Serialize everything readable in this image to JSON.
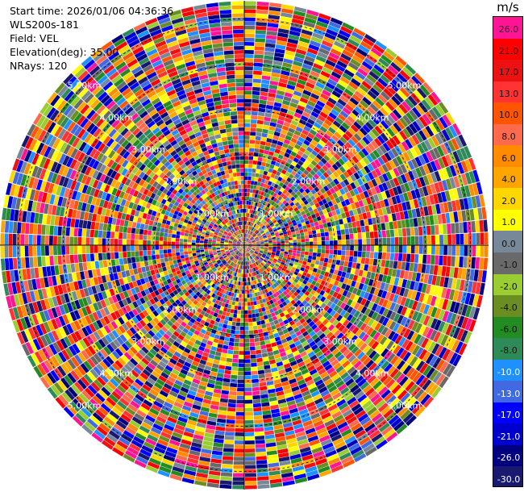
{
  "chart_data": {
    "type": "ppi",
    "field": "VEL",
    "unit": "m/s",
    "n_rays": 120,
    "max_range_km": 5.4,
    "range_rings_km": [
      1,
      2,
      3,
      4,
      5
    ],
    "range_labels": [
      "1.00km",
      "2.00km",
      "3.00km",
      "4.00km",
      "5.00km"
    ],
    "colorbar": {
      "ticks": [
        "26.0",
        "21.0",
        "17.0",
        "13.0",
        "10.0",
        "8.0",
        "6.0",
        "4.0",
        "2.0",
        "1.0",
        "0.0",
        "-1.0",
        "-2.0",
        "-4.0",
        "-6.0",
        "-8.0",
        "-10.0",
        "-13.0",
        "-17.0",
        "-21.0",
        "-26.0",
        "-30.0"
      ],
      "colors": [
        "#ff1493",
        "#ff0000",
        "#ee1111",
        "#ff3333",
        "#ff5500",
        "#ff6a4d",
        "#ff8c00",
        "#ffa500",
        "#ffd700",
        "#ffff00",
        "#778899",
        "#696969",
        "#9acd32",
        "#6b8e23",
        "#228b22",
        "#2e8b57",
        "#1e90ff",
        "#4169e1",
        "#0000ff",
        "#0000cd",
        "#000080",
        "#191970"
      ]
    }
  },
  "info": {
    "start_time": "Start time: 2026/01/06 04:36:36",
    "instrument": "WLS200s-181",
    "field": "Field: VEL",
    "elevation": "Elevation(deg): 35.00",
    "nrays": "NRays: 120"
  }
}
